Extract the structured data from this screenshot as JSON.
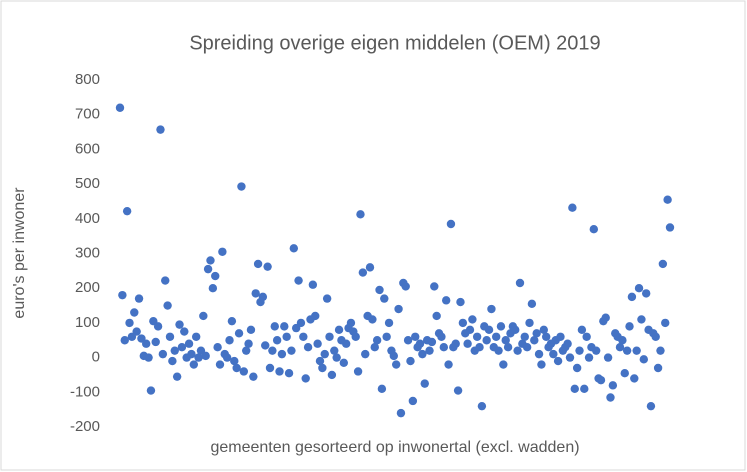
{
  "chart_data": {
    "type": "scatter",
    "title": "Spreiding overige eigen middelen (OEM) 2019",
    "x_label": "gemeenten gesorteerd  op inwonertal (excl. wadden)",
    "y_label": "euro's per inwoner",
    "color": "#4472c4",
    "ylim": [
      -200,
      800
    ],
    "yticks": [
      -200,
      -100,
      0,
      100,
      200,
      300,
      400,
      500,
      600,
      700,
      800
    ],
    "grid": false,
    "values": [
      720,
      180,
      50,
      422,
      100,
      60,
      130,
      75,
      170,
      55,
      5,
      40,
      0,
      -95,
      105,
      45,
      90,
      657,
      10,
      222,
      150,
      60,
      -10,
      20,
      -55,
      95,
      30,
      75,
      0,
      40,
      10,
      -20,
      60,
      0,
      20,
      120,
      5,
      255,
      280,
      200,
      235,
      30,
      -20,
      305,
      10,
      0,
      50,
      105,
      -10,
      -30,
      70,
      493,
      -40,
      20,
      40,
      80,
      -55,
      185,
      270,
      160,
      175,
      35,
      262,
      -30,
      20,
      90,
      50,
      -40,
      10,
      90,
      60,
      -45,
      20,
      315,
      85,
      222,
      100,
      60,
      -60,
      30,
      110,
      210,
      120,
      40,
      -10,
      -30,
      10,
      170,
      60,
      -50,
      20,
      0,
      80,
      50,
      -15,
      40,
      85,
      100,
      75,
      60,
      -40,
      413,
      245,
      10,
      120,
      260,
      110,
      30,
      50,
      195,
      -90,
      170,
      60,
      100,
      20,
      5,
      -20,
      140,
      -160,
      215,
      205,
      50,
      -10,
      -125,
      60,
      30,
      40,
      10,
      -75,
      50,
      20,
      45,
      205,
      120,
      70,
      60,
      30,
      165,
      -20,
      385,
      30,
      40,
      -95,
      160,
      100,
      70,
      40,
      80,
      110,
      20,
      60,
      30,
      -140,
      90,
      50,
      80,
      140,
      30,
      60,
      20,
      90,
      -20,
      50,
      30,
      70,
      90,
      80,
      20,
      215,
      40,
      60,
      30,
      100,
      155,
      50,
      70,
      10,
      -20,
      80,
      60,
      30,
      40,
      10,
      50,
      -10,
      60,
      20,
      30,
      40,
      0,
      432,
      -90,
      -30,
      20,
      80,
      -90,
      60,
      0,
      30,
      370,
      20,
      -60,
      -65,
      105,
      115,
      0,
      -115,
      -80,
      70,
      60,
      30,
      50,
      -45,
      20,
      90,
      175,
      -60,
      20,
      200,
      110,
      -5,
      185,
      80,
      -140,
      70,
      60,
      -30,
      20,
      270,
      100,
      455,
      375
    ]
  }
}
